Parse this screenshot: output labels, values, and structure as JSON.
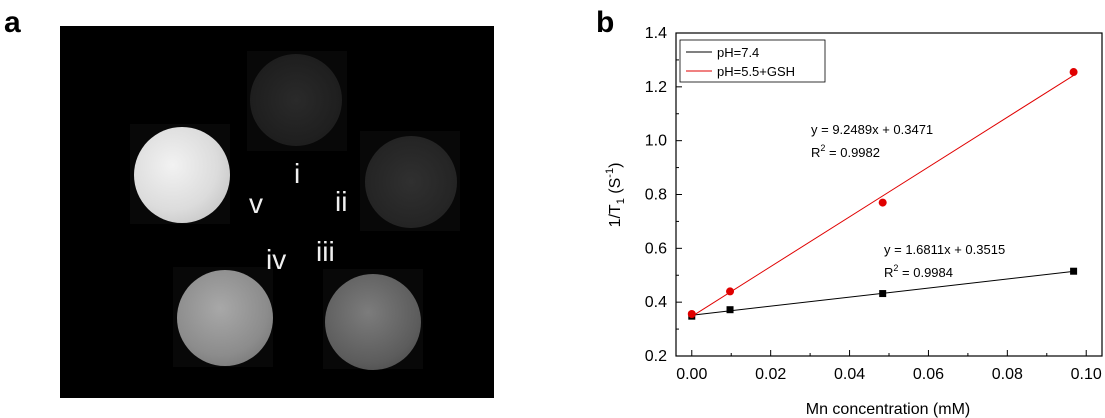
{
  "panels": {
    "a": "a",
    "b": "b"
  },
  "mri": {
    "samples": [
      {
        "id": "i",
        "label": "i",
        "intensity": "very low"
      },
      {
        "id": "ii",
        "label": "ii",
        "intensity": "very low"
      },
      {
        "id": "iii",
        "label": "iii",
        "intensity": "medium"
      },
      {
        "id": "iv",
        "label": "iv",
        "intensity": "medium-high"
      },
      {
        "id": "v",
        "label": "v",
        "intensity": "high"
      }
    ]
  },
  "chart_data": {
    "type": "scatter",
    "xlabel": "Mn concentration (mM)",
    "ylabel_main": "1/T",
    "ylabel_sub": "1",
    "ylabel_unit_pre": " (S",
    "ylabel_unit_sup": "-1",
    "ylabel_unit_post": ")",
    "xlim": [
      -0.004,
      0.104
    ],
    "ylim": [
      0.2,
      1.4
    ],
    "xticks": [
      "0.00",
      "0.02",
      "0.04",
      "0.06",
      "0.08",
      "0.10"
    ],
    "xtick_values": [
      0,
      0.02,
      0.04,
      0.06,
      0.08,
      0.1
    ],
    "yticks": [
      "0.2",
      "0.4",
      "0.6",
      "0.8",
      "1.0",
      "1.2",
      "1.4"
    ],
    "ytick_values": [
      0.2,
      0.4,
      0.6,
      0.8,
      1.0,
      1.2,
      1.4
    ],
    "legend_position": "top-left",
    "series": [
      {
        "name": "pH=7.4",
        "color": "#000000",
        "marker": "square",
        "x": [
          0.0,
          0.0097,
          0.0484,
          0.0968
        ],
        "y": [
          0.348,
          0.372,
          0.432,
          0.515
        ],
        "fit": {
          "slope": 1.6811,
          "intercept": 0.3515
        },
        "equation": "y = 1.6811x + 0.3515",
        "r2_label": "R",
        "r2_sup": "2",
        "r2_value": " = 0.9984"
      },
      {
        "name": "pH=5.5+GSH",
        "color": "#e00000",
        "marker": "circle",
        "x": [
          0.0,
          0.0097,
          0.0484,
          0.0968
        ],
        "y": [
          0.356,
          0.44,
          0.77,
          1.255
        ],
        "fit": {
          "slope": 9.2489,
          "intercept": 0.3471
        },
        "equation": "y = 9.2489x + 0.3471",
        "r2_label": "R",
        "r2_sup": "2",
        "r2_value": " = 0.9982"
      }
    ]
  }
}
